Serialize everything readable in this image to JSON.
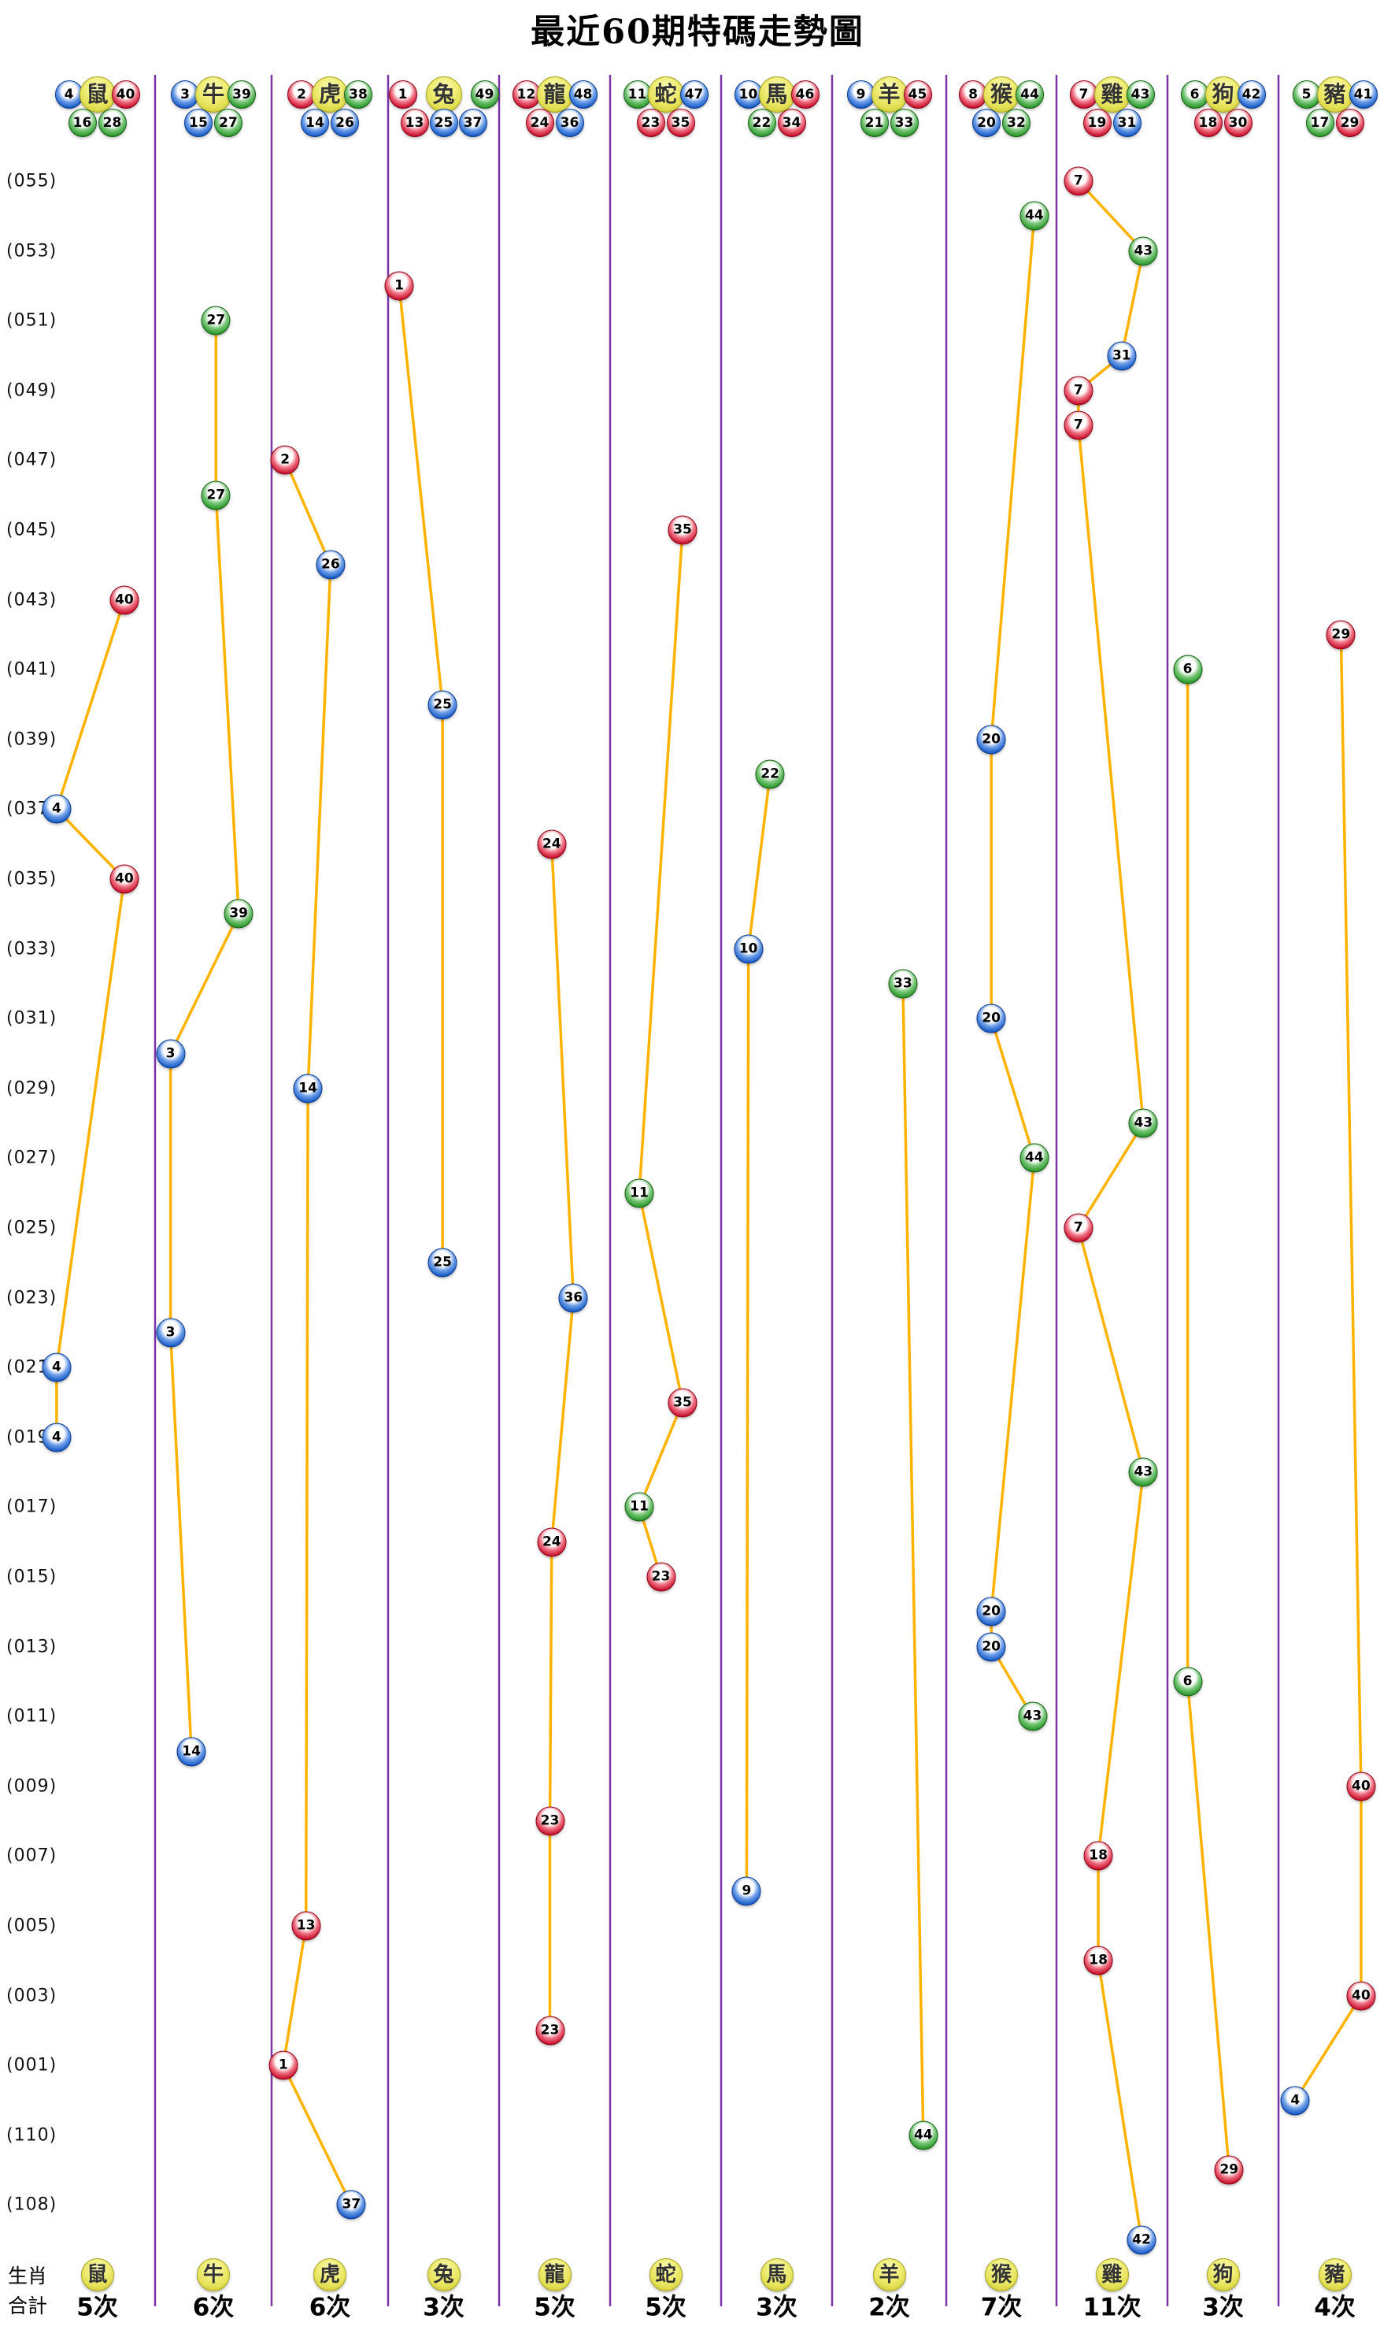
{
  "chart_data": {
    "type": "scatter",
    "title": "最近60期特碼走勢圖",
    "legend_position": "none",
    "grid": "vertical-purple-separators",
    "y_axis_labels": [
      {
        "text": "(055)",
        "idx": 0
      },
      {
        "text": "(053)",
        "idx": 2
      },
      {
        "text": "(051)",
        "idx": 4
      },
      {
        "text": "(049)",
        "idx": 6
      },
      {
        "text": "(047)",
        "idx": 8
      },
      {
        "text": "(045)",
        "idx": 10
      },
      {
        "text": "(043)",
        "idx": 12
      },
      {
        "text": "(041)",
        "idx": 14
      },
      {
        "text": "(039)",
        "idx": 16
      },
      {
        "text": "(037)",
        "idx": 18
      },
      {
        "text": "(035)",
        "idx": 20
      },
      {
        "text": "(033)",
        "idx": 22
      },
      {
        "text": "(031)",
        "idx": 24
      },
      {
        "text": "(029)",
        "idx": 26
      },
      {
        "text": "(027)",
        "idx": 28
      },
      {
        "text": "(025)",
        "idx": 30
      },
      {
        "text": "(023)",
        "idx": 32
      },
      {
        "text": "(021)",
        "idx": 34
      },
      {
        "text": "(019)",
        "idx": 36
      },
      {
        "text": "(017)",
        "idx": 38
      },
      {
        "text": "(015)",
        "idx": 40
      },
      {
        "text": "(013)",
        "idx": 42
      },
      {
        "text": "(011)",
        "idx": 44
      },
      {
        "text": "(009)",
        "idx": 46
      },
      {
        "text": "(007)",
        "idx": 48
      },
      {
        "text": "(005)",
        "idx": 50
      },
      {
        "text": "(003)",
        "idx": 52
      },
      {
        "text": "(001)",
        "idx": 54
      },
      {
        "text": "(110)",
        "idx": 56
      },
      {
        "text": "(108)",
        "idx": 58
      }
    ],
    "row_captions": {
      "zodiac": "生肖",
      "total": "合計"
    },
    "ball_colors": {
      "red": [
        1,
        2,
        7,
        8,
        12,
        13,
        18,
        19,
        23,
        24,
        29,
        30,
        34,
        35,
        40,
        45,
        46
      ],
      "blue": [
        3,
        4,
        9,
        10,
        14,
        15,
        20,
        25,
        26,
        31,
        36,
        37,
        41,
        42,
        47,
        48
      ],
      "green": [
        5,
        6,
        11,
        16,
        17,
        21,
        22,
        27,
        28,
        32,
        33,
        38,
        39,
        43,
        44,
        49
      ]
    },
    "colors": {
      "line": "#FFB300",
      "separator": "#7A35A8",
      "red": "#CB1330",
      "blue": "#1A5EC9",
      "green": "#2C9A2C",
      "zodiac_ball": "#E3DF52"
    },
    "columns": [
      {
        "zodiac": "鼠",
        "header_row1": [
          4,
          40
        ],
        "header_row2": [
          16,
          28
        ],
        "count": "5次",
        "balls": [
          {
            "n": 40,
            "idx": 12
          },
          {
            "n": 4,
            "idx": 18
          },
          {
            "n": 40,
            "idx": 20
          },
          {
            "n": 4,
            "idx": 34
          },
          {
            "n": 4,
            "idx": 36
          }
        ]
      },
      {
        "zodiac": "牛",
        "header_row1": [
          3,
          39
        ],
        "header_row2": [
          15,
          27
        ],
        "count": "6次",
        "balls": [
          {
            "n": 27,
            "idx": 4
          },
          {
            "n": 27,
            "idx": 9
          },
          {
            "n": 39,
            "idx": 21
          },
          {
            "n": 3,
            "idx": 25
          },
          {
            "n": 3,
            "idx": 33
          },
          {
            "n": 14,
            "idx": 45
          }
        ]
      },
      {
        "zodiac": "虎",
        "header_row1": [
          2,
          38
        ],
        "header_row2": [
          14,
          26
        ],
        "count": "6次",
        "balls": [
          {
            "n": 2,
            "idx": 8
          },
          {
            "n": 26,
            "idx": 11
          },
          {
            "n": 14,
            "idx": 26
          },
          {
            "n": 13,
            "idx": 50
          },
          {
            "n": 1,
            "idx": 54
          },
          {
            "n": 37,
            "idx": 58
          }
        ]
      },
      {
        "zodiac": "兔",
        "header_row1": [
          1,
          49
        ],
        "header_row2": [
          13,
          25,
          37
        ],
        "count": "3次",
        "balls": [
          {
            "n": 1,
            "idx": 3
          },
          {
            "n": 25,
            "idx": 15
          },
          {
            "n": 25,
            "idx": 31
          }
        ]
      },
      {
        "zodiac": "龍",
        "header_row1": [
          12,
          48
        ],
        "header_row2": [
          24,
          36
        ],
        "count": "5次",
        "balls": [
          {
            "n": 24,
            "idx": 19
          },
          {
            "n": 36,
            "idx": 32
          },
          {
            "n": 24,
            "idx": 39
          },
          {
            "n": 23,
            "idx": 47
          },
          {
            "n": 23,
            "idx": 53
          }
        ]
      },
      {
        "zodiac": "蛇",
        "header_row1": [
          11,
          47
        ],
        "header_row2": [
          23,
          35
        ],
        "count": "5次",
        "balls": [
          {
            "n": 35,
            "idx": 10
          },
          {
            "n": 11,
            "idx": 29
          },
          {
            "n": 35,
            "idx": 35
          },
          {
            "n": 11,
            "idx": 38
          },
          {
            "n": 23,
            "idx": 40
          }
        ]
      },
      {
        "zodiac": "馬",
        "header_row1": [
          10,
          46
        ],
        "header_row2": [
          22,
          34
        ],
        "count": "3次",
        "balls": [
          {
            "n": 22,
            "idx": 17
          },
          {
            "n": 10,
            "idx": 22
          },
          {
            "n": 9,
            "idx": 49
          }
        ]
      },
      {
        "zodiac": "羊",
        "header_row1": [
          9,
          45
        ],
        "header_row2": [
          21,
          33
        ],
        "count": "2次",
        "balls": [
          {
            "n": 33,
            "idx": 23
          },
          {
            "n": 44,
            "idx": 56
          }
        ]
      },
      {
        "zodiac": "猴",
        "header_row1": [
          8,
          44
        ],
        "header_row2": [
          20,
          32
        ],
        "count": "7次",
        "balls": [
          {
            "n": 44,
            "idx": 1
          },
          {
            "n": 20,
            "idx": 16
          },
          {
            "n": 20,
            "idx": 24
          },
          {
            "n": 44,
            "idx": 28
          },
          {
            "n": 20,
            "idx": 41
          },
          {
            "n": 20,
            "idx": 42
          },
          {
            "n": 43,
            "idx": 44
          }
        ]
      },
      {
        "zodiac": "雞",
        "header_row1": [
          7,
          43
        ],
        "header_row2": [
          19,
          31
        ],
        "count": "11次",
        "balls": [
          {
            "n": 7,
            "idx": 0
          },
          {
            "n": 43,
            "idx": 2
          },
          {
            "n": 31,
            "idx": 5
          },
          {
            "n": 7,
            "idx": 6
          },
          {
            "n": 7,
            "idx": 7
          },
          {
            "n": 43,
            "idx": 27
          },
          {
            "n": 7,
            "idx": 30
          },
          {
            "n": 43,
            "idx": 37
          },
          {
            "n": 18,
            "idx": 48
          },
          {
            "n": 18,
            "idx": 51
          },
          {
            "n": 42,
            "idx": 59
          }
        ]
      },
      {
        "zodiac": "狗",
        "header_row1": [
          6,
          42
        ],
        "header_row2": [
          18,
          30
        ],
        "count": "3次",
        "balls": [
          {
            "n": 6,
            "idx": 14
          },
          {
            "n": 6,
            "idx": 43
          },
          {
            "n": 29,
            "idx": 57
          }
        ]
      },
      {
        "zodiac": "豬",
        "header_row1": [
          5,
          41
        ],
        "header_row2": [
          17,
          29
        ],
        "count": "4次",
        "balls": [
          {
            "n": 29,
            "idx": 13
          },
          {
            "n": 40,
            "idx": 46
          },
          {
            "n": 40,
            "idx": 52
          },
          {
            "n": 4,
            "idx": 55
          }
        ]
      }
    ]
  }
}
